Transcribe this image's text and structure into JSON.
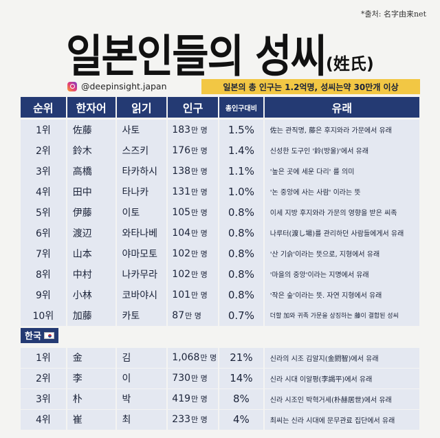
{
  "source": "*출처: 名字由来net",
  "title": {
    "main": "일본인들의 성씨",
    "sub": "(姓氏)"
  },
  "handle": "@deepinsight.japan",
  "banner": "일본의 총 인구는 1.2억명, 성씨는약 30만개 이상",
  "headers": [
    "순위",
    "한자어",
    "읽기",
    "인구",
    "총인구대비",
    "유래"
  ],
  "japan": [
    {
      "rank": "1위",
      "kanji": "佐藤",
      "reading": "사토",
      "pop": "183",
      "unit": "만 명",
      "pct": "1.5%",
      "origin": "佐는 관직명, 藤은 후지와라 가문에서 유래"
    },
    {
      "rank": "2위",
      "kanji": "鈴木",
      "reading": "스즈키",
      "pop": "176",
      "unit": "만 명",
      "pct": "1.4%",
      "origin": "신성한 도구인 '鈴(방울)'에서 유래"
    },
    {
      "rank": "3위",
      "kanji": "高橋",
      "reading": "타카하시",
      "pop": "138",
      "unit": "만 명",
      "pct": "1.1%",
      "origin": "'높은 곳에 세운 다리' 를 의미"
    },
    {
      "rank": "4위",
      "kanji": "田中",
      "reading": "타나카",
      "pop": "131",
      "unit": "만 명",
      "pct": "1.0%",
      "origin": "'논 중앙에 사는 사람' 이라는 뜻"
    },
    {
      "rank": "5위",
      "kanji": "伊藤",
      "reading": "이토",
      "pop": "105",
      "unit": "만 명",
      "pct": "0.8%",
      "origin": "이세 지방 후지와라 가문의 영향을 받은 씨족"
    },
    {
      "rank": "6위",
      "kanji": "渡辺",
      "reading": "와타나베",
      "pop": "104",
      "unit": "만 명",
      "pct": "0.8%",
      "origin": "나루터(渡し場)를 관리하던 사람들에게서 유래"
    },
    {
      "rank": "7위",
      "kanji": "山本",
      "reading": "야마모토",
      "pop": "102",
      "unit": "만 명",
      "pct": "0.8%",
      "origin": "'산 기슭'이라는 뜻으로, 지형에서 유래"
    },
    {
      "rank": "8위",
      "kanji": "中村",
      "reading": "나카무라",
      "pop": "102",
      "unit": "만 명",
      "pct": "0.8%",
      "origin": "'마을의 중앙'이라는 지명에서 유래"
    },
    {
      "rank": "9위",
      "kanji": "小林",
      "reading": "코바야시",
      "pop": "101",
      "unit": "만 명",
      "pct": "0.8%",
      "origin": "'작은 숲'이라는 뜻. 자연 지형에서 유래"
    },
    {
      "rank": "10위",
      "kanji": "加藤",
      "reading": "카토",
      "pop": "87",
      "unit": "만 명",
      "pct": "0.7%",
      "origin": "더할 加와 귀족 가문을 상징하는 藤이 결합된 성씨"
    }
  ],
  "korea_label": "한국",
  "korea": [
    {
      "rank": "1위",
      "kanji": "金",
      "reading": "김",
      "pop": "1,068",
      "unit": "만 명",
      "pct": "21%",
      "origin": "신라의 시조 김알지(金閼智)에서 유래"
    },
    {
      "rank": "2위",
      "kanji": "李",
      "reading": "이",
      "pop": "730",
      "unit": "만 명",
      "pct": "14%",
      "origin": "신라 시대 이알평(李謁平)에서 유래"
    },
    {
      "rank": "3위",
      "kanji": "朴",
      "reading": "박",
      "pop": "419",
      "unit": "만 명",
      "pct": "8%",
      "origin": "신라 시조인 박혁거세(朴赫居世)에서 유래"
    },
    {
      "rank": "4위",
      "kanji": "崔",
      "reading": "최",
      "pop": "233",
      "unit": "만 명",
      "pct": "4%",
      "origin": "최씨는 신라 시대에 문무관료 집단에서 유래"
    }
  ]
}
